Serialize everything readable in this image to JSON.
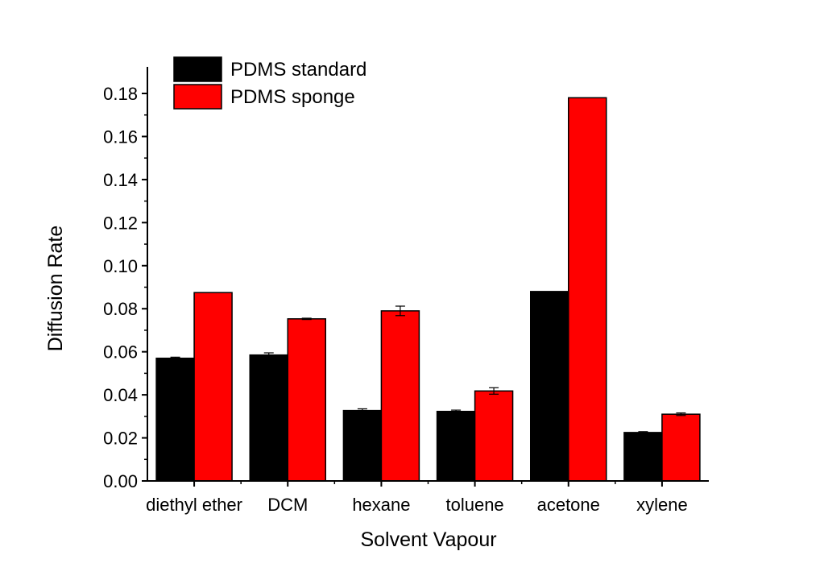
{
  "chart_data": {
    "type": "bar",
    "xlabel": "Solvent Vapour",
    "ylabel": "Diffusion Rate",
    "ylim": [
      0,
      0.19
    ],
    "yticks": [
      "0.00",
      "0.02",
      "0.04",
      "0.06",
      "0.08",
      "0.10",
      "0.12",
      "0.14",
      "0.16",
      "0.18"
    ],
    "categories": [
      "diethyl ether",
      "DCM",
      "hexane",
      "toluene",
      "acetone",
      "xylene"
    ],
    "series": [
      {
        "name": "PDMS standard",
        "color": "#000000",
        "values": [
          0.057,
          0.0585,
          0.0327,
          0.0323,
          0.088,
          0.0225
        ],
        "errors": [
          0.0005,
          0.001,
          0.0008,
          0.0006,
          0.0,
          0.0004
        ]
      },
      {
        "name": "PDMS sponge",
        "color": "#ff0000",
        "values": [
          0.0875,
          0.0753,
          0.079,
          0.0418,
          0.178,
          0.031
        ],
        "errors": [
          0.0,
          0.0003,
          0.0022,
          0.0015,
          0.0,
          0.0006
        ]
      }
    ],
    "legend_position": "top-left",
    "grid": false
  }
}
